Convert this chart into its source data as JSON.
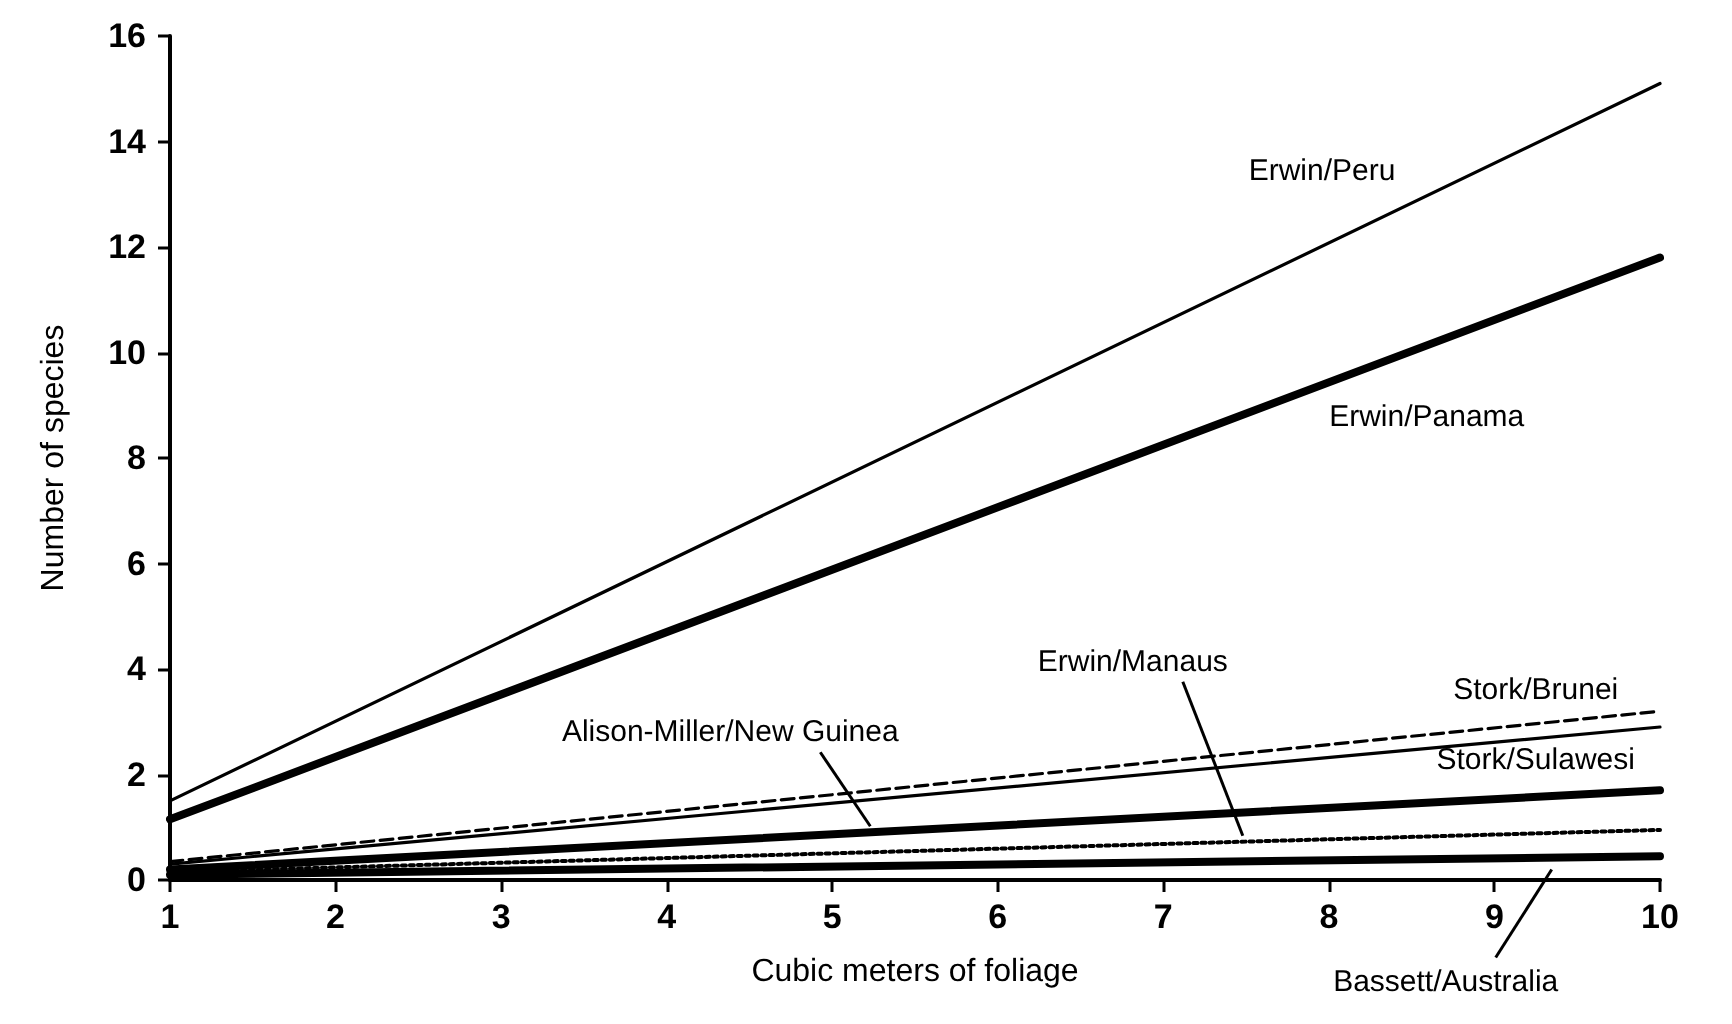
{
  "chart_data": {
    "type": "line",
    "xlabel": "Cubic meters of foliage",
    "ylabel": "Number of species",
    "xlim": [
      1,
      10
    ],
    "xticks": [
      1,
      2,
      3,
      4,
      5,
      6,
      7,
      8,
      9,
      10
    ],
    "ylim": [
      0,
      16
    ],
    "yticks": [
      0,
      2,
      4,
      6,
      8,
      10,
      12,
      14,
      16
    ],
    "grid": false,
    "legend": false,
    "marker": "none",
    "x": [
      1,
      10
    ],
    "series": [
      {
        "name": "Erwin/Peru",
        "color": "#000000",
        "values": [
          1.5,
          15.1
        ],
        "line_style": "solid"
      },
      {
        "name": "Erwin/Panama",
        "color": "#000000",
        "values": [
          1.15,
          11.8
        ],
        "line_style": "solid"
      },
      {
        "name": "Stork/Brunei",
        "color": "#000000",
        "values": [
          0.35,
          3.2
        ],
        "line_style": "dashed"
      },
      {
        "name": "Stork/Sulawesi",
        "color": "#000000",
        "values": [
          0.3,
          2.9
        ],
        "line_style": "solid"
      },
      {
        "name": "Alison-Miller/New Guinea",
        "color": "#000000",
        "values": [
          0.2,
          1.7
        ],
        "line_style": "solid"
      },
      {
        "name": "Erwin/Manaus",
        "color": "#000000",
        "values": [
          0.15,
          0.95
        ],
        "line_style": "dotted"
      },
      {
        "name": "Bassett/Australia",
        "color": "#000000",
        "values": [
          0.1,
          0.45
        ],
        "line_style": "solid"
      }
    ]
  }
}
